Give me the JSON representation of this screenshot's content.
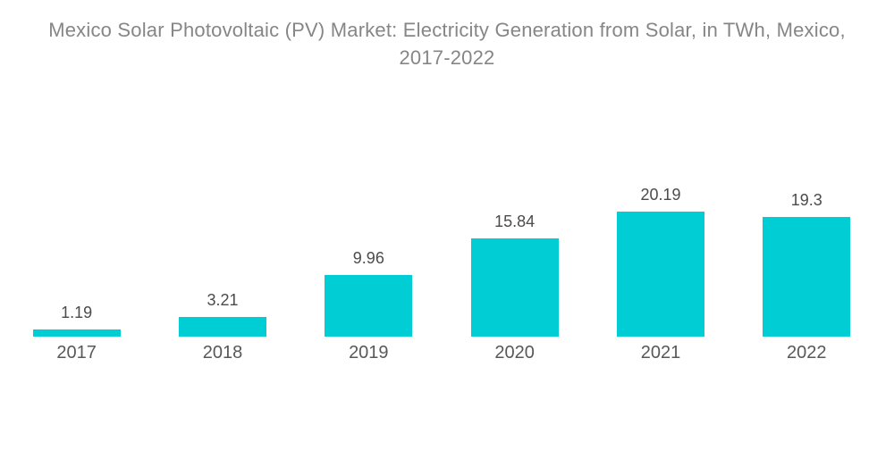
{
  "title": {
    "text": "Mexico Solar Photovoltaic (PV) Market: Electricity Generation from Solar, in TWh, Mexico, 2017-2022",
    "lines": [
      "Mexico Solar Photovoltaic (PV) Market: Electricity Generation from Solar, in TWh, Mexico,",
      "2017-2022"
    ]
  },
  "chart_data": {
    "type": "bar",
    "title": "Mexico Solar Photovoltaic (PV) Market: Electricity Generation from Solar, in TWh, Mexico, 2017-2022",
    "categories": [
      "2017",
      "2018",
      "2019",
      "2020",
      "2021",
      "2022"
    ],
    "values": [
      1.19,
      3.21,
      9.96,
      15.84,
      20.19,
      19.3
    ],
    "value_labels": [
      "1.19",
      "3.21",
      "9.96",
      "15.84",
      "20.19",
      "19.3"
    ],
    "xlabel": "",
    "ylabel": "",
    "ylim": [
      0,
      20.19
    ],
    "grid": false,
    "legend": false,
    "axes_visible": false,
    "value_labels_position": "above-bars",
    "colors": {
      "bar": "#00CDD4",
      "value_label": "#4b4b4d",
      "axis_label": "#58585a",
      "title": "#868686"
    }
  }
}
